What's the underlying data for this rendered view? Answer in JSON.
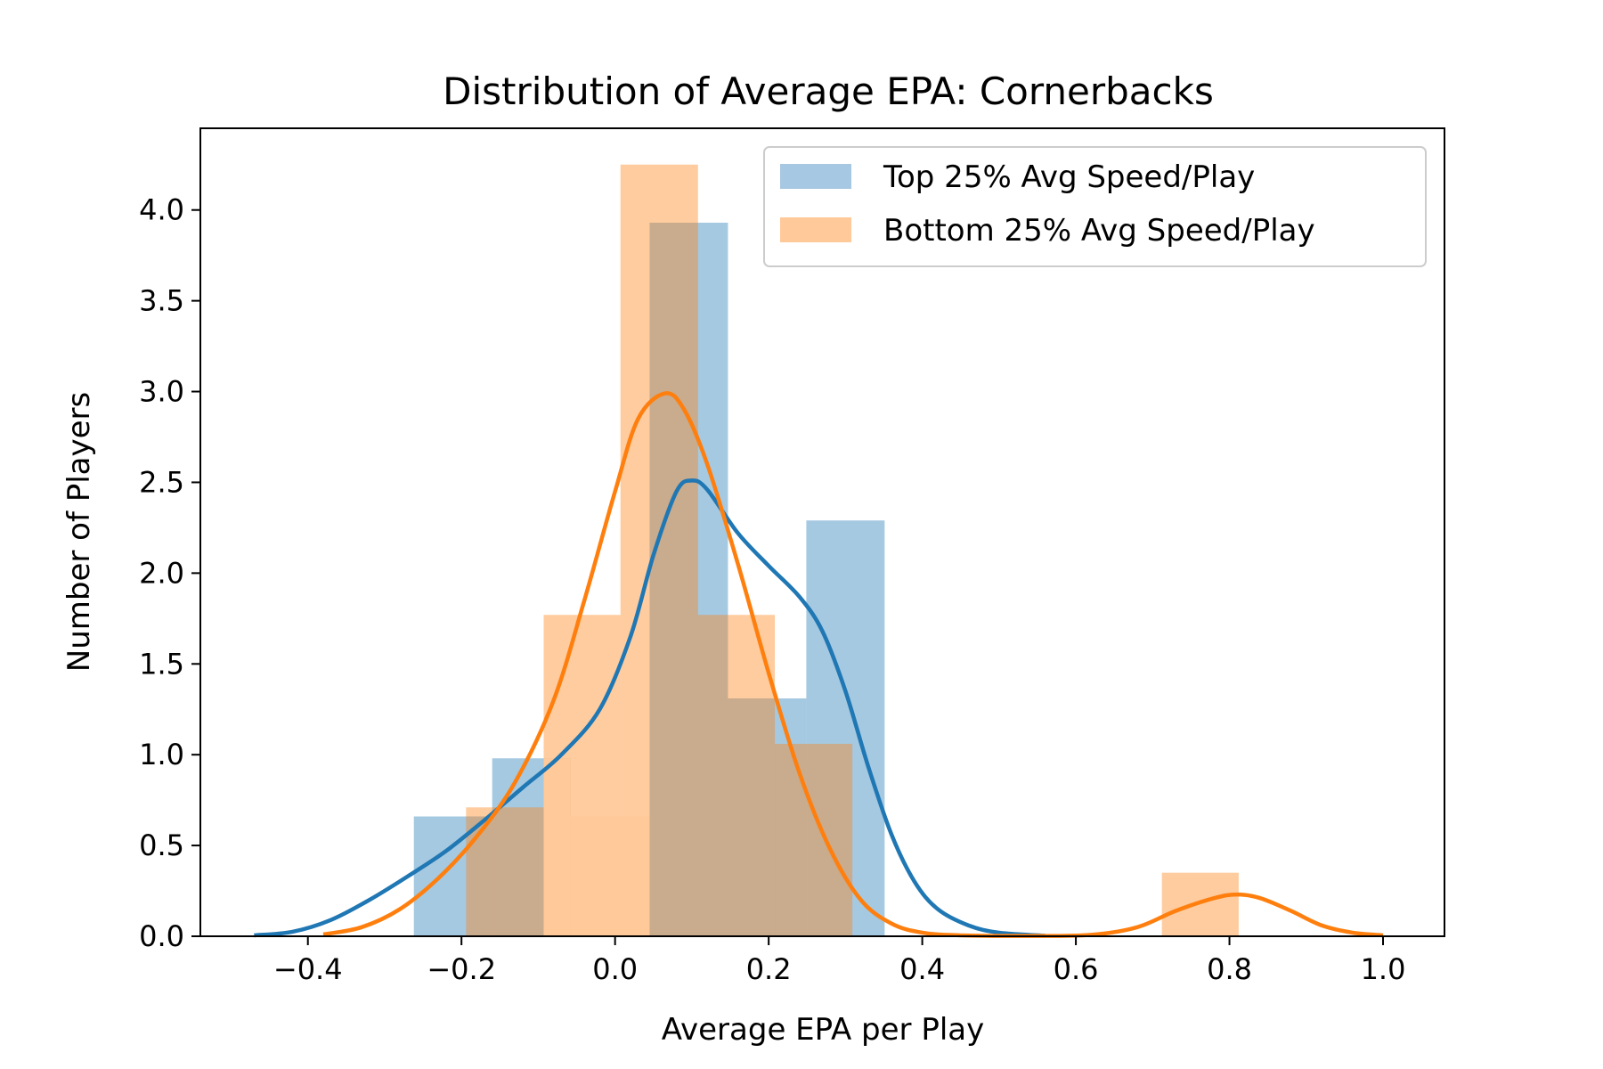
{
  "chart_data": {
    "type": "bar",
    "title": "Distribution of Average EPA: Cornerbacks",
    "xlabel": "Average EPA per Play",
    "ylabel": "Number of Players",
    "xlim": [
      -0.54,
      1.08
    ],
    "ylim": [
      0,
      4.45
    ],
    "xticks": [
      -0.4,
      -0.2,
      0.0,
      0.2,
      0.4,
      0.6,
      0.8,
      1.0
    ],
    "xtick_labels": [
      "−0.4",
      "−0.2",
      "0.0",
      "0.2",
      "0.4",
      "0.6",
      "0.8",
      "1.0"
    ],
    "yticks": [
      0.0,
      0.5,
      1.0,
      1.5,
      2.0,
      2.5,
      3.0,
      3.5,
      4.0
    ],
    "ytick_labels": [
      "0.0",
      "0.5",
      "1.0",
      "1.5",
      "2.0",
      "2.5",
      "3.0",
      "3.5",
      "4.0"
    ],
    "grid": false,
    "legend_position": "top-right",
    "series": [
      {
        "name": "Top 25% Avg Speed/Play",
        "color": "#1f77b4",
        "fill_color": "#a6c8e2",
        "bins": [
          {
            "x0": -0.262,
            "x1": -0.16,
            "y": 0.66
          },
          {
            "x0": -0.16,
            "x1": -0.058,
            "y": 0.98
          },
          {
            "x0": -0.058,
            "x1": 0.045,
            "y": 0.0
          },
          {
            "x0": 0.045,
            "x1": 0.147,
            "y": 3.93
          },
          {
            "x0": 0.147,
            "x1": 0.249,
            "y": 1.31
          },
          {
            "x0": 0.249,
            "x1": 0.351,
            "y": 2.29
          }
        ],
        "kde": [
          [
            -0.47,
            0.005
          ],
          [
            -0.42,
            0.025
          ],
          [
            -0.37,
            0.09
          ],
          [
            -0.32,
            0.2
          ],
          [
            -0.27,
            0.33
          ],
          [
            -0.22,
            0.47
          ],
          [
            -0.17,
            0.64
          ],
          [
            -0.12,
            0.82
          ],
          [
            -0.07,
            1.0
          ],
          [
            -0.02,
            1.25
          ],
          [
            0.02,
            1.65
          ],
          [
            0.05,
            2.1
          ],
          [
            0.08,
            2.45
          ],
          [
            0.1,
            2.51
          ],
          [
            0.12,
            2.46
          ],
          [
            0.16,
            2.22
          ],
          [
            0.2,
            2.04
          ],
          [
            0.24,
            1.87
          ],
          [
            0.27,
            1.68
          ],
          [
            0.3,
            1.35
          ],
          [
            0.33,
            0.93
          ],
          [
            0.36,
            0.56
          ],
          [
            0.39,
            0.3
          ],
          [
            0.42,
            0.15
          ],
          [
            0.46,
            0.06
          ],
          [
            0.5,
            0.02
          ],
          [
            0.56,
            0.003
          ]
        ]
      },
      {
        "name": "Bottom 25% Avg Speed/Play",
        "color": "#ff7f0e",
        "fill_color": "#ffc999",
        "bins": [
          {
            "x0": -0.194,
            "x1": -0.093,
            "y": 0.71
          },
          {
            "x0": -0.093,
            "x1": 0.007,
            "y": 1.77
          },
          {
            "x0": 0.007,
            "x1": 0.108,
            "y": 4.25
          },
          {
            "x0": 0.108,
            "x1": 0.208,
            "y": 1.77
          },
          {
            "x0": 0.208,
            "x1": 0.309,
            "y": 1.06
          },
          {
            "x0": 0.309,
            "x1": 0.41,
            "y": 0.0
          },
          {
            "x0": 0.41,
            "x1": 0.51,
            "y": 0.0
          },
          {
            "x0": 0.51,
            "x1": 0.611,
            "y": 0.0
          },
          {
            "x0": 0.611,
            "x1": 0.712,
            "y": 0.0
          },
          {
            "x0": 0.712,
            "x1": 0.812,
            "y": 0.35
          }
        ],
        "overlay_bins": [
          {
            "x0": -0.093,
            "x1": -0.058,
            "y": 0.98
          },
          {
            "x0": -0.058,
            "x1": 0.045,
            "y": 0.66
          }
        ],
        "kde": [
          [
            -0.38,
            0.01
          ],
          [
            -0.33,
            0.05
          ],
          [
            -0.28,
            0.15
          ],
          [
            -0.23,
            0.32
          ],
          [
            -0.18,
            0.55
          ],
          [
            -0.13,
            0.85
          ],
          [
            -0.08,
            1.3
          ],
          [
            -0.04,
            1.85
          ],
          [
            0.0,
            2.45
          ],
          [
            0.03,
            2.85
          ],
          [
            0.065,
            2.99
          ],
          [
            0.09,
            2.9
          ],
          [
            0.12,
            2.6
          ],
          [
            0.16,
            2.05
          ],
          [
            0.2,
            1.45
          ],
          [
            0.24,
            0.9
          ],
          [
            0.28,
            0.48
          ],
          [
            0.32,
            0.2
          ],
          [
            0.36,
            0.07
          ],
          [
            0.4,
            0.02
          ],
          [
            0.45,
            0.005
          ],
          [
            0.55,
            0.002
          ],
          [
            0.62,
            0.008
          ],
          [
            0.68,
            0.05
          ],
          [
            0.73,
            0.14
          ],
          [
            0.78,
            0.21
          ],
          [
            0.81,
            0.23
          ],
          [
            0.84,
            0.21
          ],
          [
            0.88,
            0.14
          ],
          [
            0.92,
            0.06
          ],
          [
            0.96,
            0.02
          ],
          [
            1.0,
            0.005
          ]
        ]
      }
    ]
  }
}
